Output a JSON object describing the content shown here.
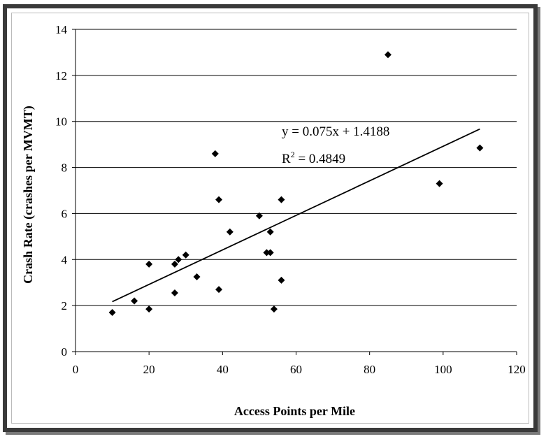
{
  "chart_data": {
    "type": "scatter",
    "xlabel": "Access Points per Mile",
    "ylabel": "Crash Rate (crashes per MVMT)",
    "xlim": [
      0,
      120
    ],
    "ylim": [
      0,
      14
    ],
    "xticks": [
      "0",
      "20",
      "40",
      "60",
      "80",
      "100",
      "120"
    ],
    "yticks": [
      "0",
      "2",
      "4",
      "6",
      "8",
      "10",
      "12",
      "14"
    ],
    "grid": "horizontal",
    "points": [
      {
        "x": 10,
        "y": 1.7
      },
      {
        "x": 16,
        "y": 2.2
      },
      {
        "x": 20,
        "y": 1.85
      },
      {
        "x": 20,
        "y": 3.8
      },
      {
        "x": 27,
        "y": 2.55
      },
      {
        "x": 27,
        "y": 3.8
      },
      {
        "x": 28,
        "y": 4.0
      },
      {
        "x": 30,
        "y": 4.2
      },
      {
        "x": 33,
        "y": 3.25
      },
      {
        "x": 38,
        "y": 8.6
      },
      {
        "x": 39,
        "y": 6.6
      },
      {
        "x": 39,
        "y": 2.7
      },
      {
        "x": 42,
        "y": 5.2
      },
      {
        "x": 50,
        "y": 5.9
      },
      {
        "x": 52,
        "y": 4.3
      },
      {
        "x": 53,
        "y": 5.2
      },
      {
        "x": 53,
        "y": 4.3
      },
      {
        "x": 54,
        "y": 1.85
      },
      {
        "x": 56,
        "y": 6.6
      },
      {
        "x": 56,
        "y": 3.1
      },
      {
        "x": 85,
        "y": 12.9
      },
      {
        "x": 99,
        "y": 7.3
      },
      {
        "x": 110,
        "y": 8.85
      }
    ],
    "trendline": {
      "slope": 0.075,
      "intercept": 1.4188,
      "x_range": [
        10,
        110
      ],
      "equation": "y = 0.075x + 1.4188",
      "r2_prefix": "R",
      "r2_exp": "2",
      "r2_suffix": " = 0.4849"
    }
  }
}
